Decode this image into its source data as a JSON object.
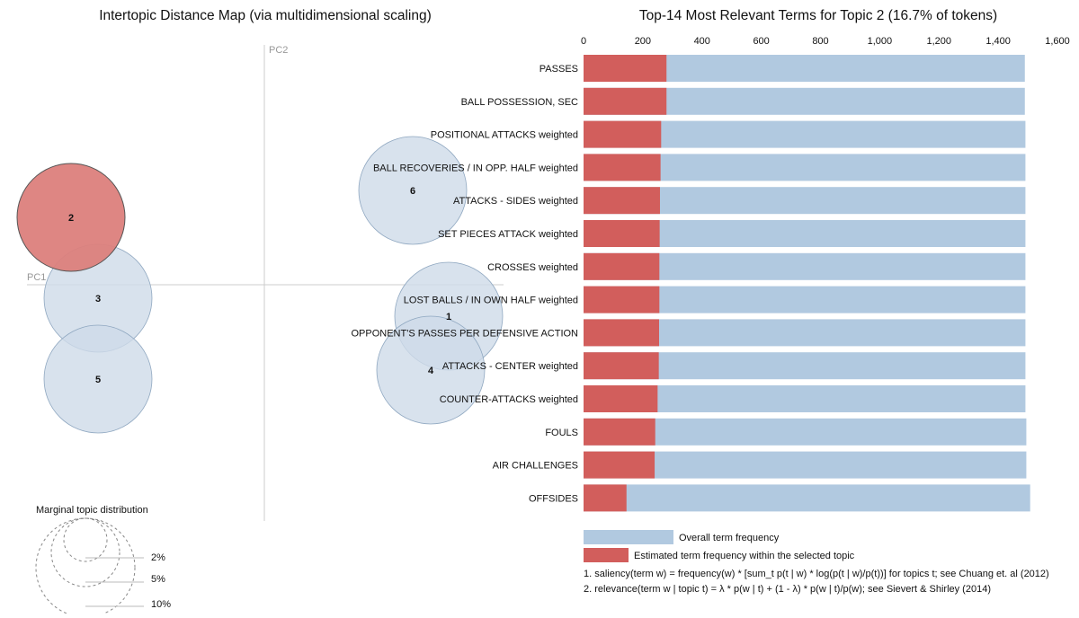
{
  "left_panel": {
    "title": "Intertopic Distance Map (via multidimensional scaling)",
    "axis_x_label": "PC1",
    "axis_y_label": "PC2"
  },
  "marginal": {
    "title": "Marginal topic distribution",
    "labels": [
      "2%",
      "5%",
      "10%"
    ]
  },
  "right_panel": {
    "title": "Top-14 Most Relevant Terms for Topic 2 (16.7% of tokens)"
  },
  "legend": {
    "overall_label": "Overall term frequency",
    "topic_label": "Estimated term frequency within the selected topic"
  },
  "footnotes": [
    "1. saliency(term w) = frequency(w) * [sum_t p(t | w) * log(p(t | w)/p(t))] for topics t; see Chuang et. al (2012)",
    "2. relevance(term w | topic t) = λ * p(w | t) + (1 - λ) * p(w | t)/p(w); see Sievert & Shirley (2014)"
  ],
  "colors": {
    "overall": "#b1c9e0",
    "topic": "#d25e5c",
    "selected_topic_fill": "#dc7f7c",
    "topic_bubble_fill": "#cedbe9",
    "bubble_stroke": "#8fa7c0",
    "axis": "#cccccc",
    "text": "#111111"
  },
  "chart_data": [
    {
      "type": "scatter",
      "title": "Intertopic Distance Map (via multidimensional scaling)",
      "xlabel": "PC1",
      "ylabel": "PC2",
      "selected_topic": 2,
      "topics": [
        {
          "id": "1",
          "pc1": 0.205,
          "pc2": -0.035,
          "size_pct": 16.7
        },
        {
          "id": "2",
          "pc1": -0.215,
          "pc2": 0.075,
          "size_pct": 16.7
        },
        {
          "id": "3",
          "pc1": -0.185,
          "pc2": -0.015,
          "size_pct": 16.7
        },
        {
          "id": "4",
          "pc1": 0.185,
          "pc2": -0.095,
          "size_pct": 16.7
        },
        {
          "id": "5",
          "pc1": -0.185,
          "pc2": -0.105,
          "size_pct": 16.7
        },
        {
          "id": "6",
          "pc1": 0.165,
          "pc2": 0.105,
          "size_pct": 16.7
        }
      ]
    },
    {
      "type": "bar",
      "orientation": "horizontal",
      "stacked": false,
      "title": "Top-14 Most Relevant Terms for Topic 2 (16.7% of tokens)",
      "xlim": [
        0,
        1600
      ],
      "xticks": [
        0,
        200,
        400,
        600,
        800,
        1000,
        1200,
        1400,
        1600
      ],
      "xtick_labels": [
        "0",
        "200",
        "400",
        "600",
        "800",
        "1,000",
        "1,200",
        "1,400",
        "1,600"
      ],
      "categories": [
        "PASSES",
        "BALL POSSESSION, SEC",
        "POSITIONAL ATTACKS weighted",
        "BALL RECOVERIES / IN OPP. HALF weighted",
        "ATTACKS - SIDES weighted",
        "SET PIECES ATTACK weighted",
        "CROSSES weighted",
        "LOST BALLS / IN OWN HALF weighted",
        "OPPONENT'S PASSES PER DEFENSIVE ACTION",
        "ATTACKS - CENTER weighted",
        "COUNTER-ATTACKS weighted",
        "FOULS",
        "AIR CHALLENGES",
        "OFFSIDES"
      ],
      "series": [
        {
          "name": "Overall term frequency",
          "values": [
            1490,
            1490,
            1492,
            1492,
            1492,
            1492,
            1492,
            1492,
            1492,
            1492,
            1492,
            1495,
            1495,
            1508
          ]
        },
        {
          "name": "Estimated term frequency within the selected topic",
          "values": [
            280,
            280,
            262,
            260,
            258,
            257,
            256,
            256,
            255,
            254,
            250,
            242,
            240,
            145
          ]
        }
      ]
    }
  ]
}
